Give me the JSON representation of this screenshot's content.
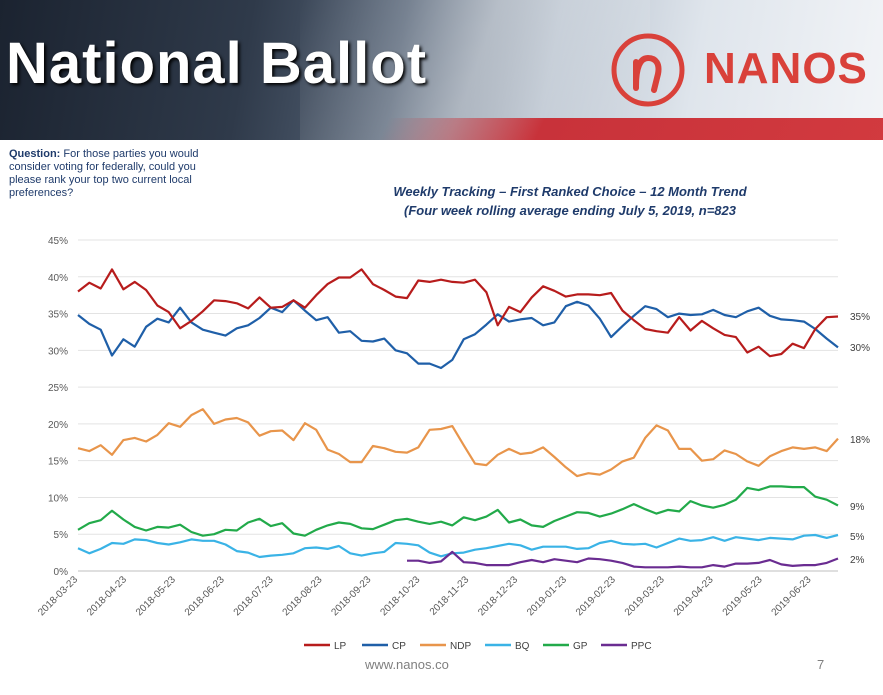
{
  "header": {
    "title": "National Ballot",
    "logo_text": "NANOS"
  },
  "question": {
    "label": "Question:",
    "text": " For those parties you would consider voting for federally, could you please rank your top two current local preferences?"
  },
  "footer": {
    "url": "www.nanos.co",
    "page": "7"
  },
  "colors": {
    "LP": "#b71c1c",
    "CP": "#1f5fa8",
    "NDP": "#e8954b",
    "BQ": "#3ab3e6",
    "GP": "#22aa4a",
    "PPC": "#6a2c91"
  },
  "chart_data": {
    "type": "line",
    "title": "Weekly Tracking – First Ranked Choice – 12 Month Trend",
    "subtitle": "(Four week rolling average ending July 5, 2019, n=823",
    "ylim": [
      0,
      45
    ],
    "y_ticks": [
      "0%",
      "5%",
      "10%",
      "15%",
      "20%",
      "25%",
      "30%",
      "35%",
      "40%",
      "45%"
    ],
    "x_ticks": [
      "2018-03-23",
      "2018-04-23",
      "2018-05-23",
      "2018-06-23",
      "2018-07-23",
      "2018-08-23",
      "2018-09-23",
      "2018-10-23",
      "2018-11-23",
      "2018-12-23",
      "2019-01-23",
      "2019-02-23",
      "2019-03-23",
      "2019-04-23",
      "2019-05-23",
      "2019-06-23"
    ],
    "end_labels": [
      "35%",
      "30%",
      "18%",
      "9%",
      "5%",
      "2%"
    ],
    "series": [
      {
        "name": "LP",
        "values": [
          38,
          39.2,
          38.4,
          41,
          38.3,
          39.3,
          38.2,
          36.1,
          35.2,
          33,
          34,
          35.3,
          36.8,
          36.7,
          36.4,
          35.7,
          37.2,
          35.8,
          35.9,
          36.8,
          35.8,
          37.5,
          39,
          39.9,
          39.9,
          41,
          39,
          38.2,
          37.3,
          37.1,
          39.5,
          39.3,
          39.6,
          39.3,
          39.2,
          39.6,
          37.9,
          33.4,
          35.9,
          35.2,
          37.2,
          38.7,
          38.1,
          37.3,
          37.6,
          37.6,
          37.5,
          37.8,
          35.4,
          34.1,
          32.9,
          32.6,
          32.4,
          34.5,
          32.7,
          34,
          33,
          32.1,
          31.8,
          29.7,
          30.5,
          29.2,
          29.5,
          30.9,
          30.3,
          32.9,
          34.5,
          34.6
        ]
      },
      {
        "name": "CP",
        "values": [
          34.8,
          33.6,
          32.8,
          29.3,
          31.5,
          30.5,
          33.2,
          34.3,
          33.8,
          35.8,
          33.8,
          32.8,
          32.4,
          32,
          33,
          33.4,
          34.4,
          35.8,
          35.2,
          36.8,
          35.4,
          34.1,
          34.5,
          32.4,
          32.6,
          31.3,
          31.2,
          31.6,
          30,
          29.6,
          28.2,
          28.2,
          27.6,
          28.7,
          31.5,
          32.2,
          33.5,
          34.9,
          33.9,
          34.2,
          34.4,
          33.4,
          33.8,
          36,
          36.6,
          36.1,
          34.3,
          31.8,
          33.3,
          34.7,
          36,
          35.6,
          34.5,
          35,
          34.8,
          34.9,
          35.5,
          34.8,
          34.5,
          35.3,
          35.8,
          34.7,
          34.2,
          34.1,
          33.9,
          32.9,
          31.6,
          30.4
        ]
      },
      {
        "name": "NDP",
        "values": [
          16.7,
          16.3,
          17.1,
          15.8,
          17.8,
          18.1,
          17.6,
          18.5,
          20.1,
          19.6,
          21.2,
          22,
          20,
          20.6,
          20.8,
          20.2,
          18.4,
          19,
          19.1,
          17.8,
          20.1,
          19.2,
          16.5,
          15.9,
          14.8,
          14.8,
          17,
          16.7,
          16.2,
          16.1,
          16.8,
          19.2,
          19.3,
          19.7,
          17.1,
          14.6,
          14.4,
          15.8,
          16.6,
          15.9,
          16.1,
          16.8,
          15.5,
          14.1,
          12.9,
          13.3,
          13.1,
          13.8,
          14.9,
          15.4,
          18.1,
          19.8,
          19.1,
          16.6,
          16.6,
          15,
          15.2,
          16.4,
          15.9,
          14.9,
          14.3,
          15.6,
          16.3,
          16.8,
          16.6,
          16.8,
          16.3,
          18
        ]
      },
      {
        "name": "GP",
        "values": [
          5.6,
          6.5,
          6.9,
          8.2,
          7,
          6,
          5.5,
          6,
          5.9,
          6.3,
          5.3,
          4.8,
          5,
          5.6,
          5.5,
          6.6,
          7.1,
          6.1,
          6.5,
          5.1,
          4.8,
          5.6,
          6.2,
          6.6,
          6.4,
          5.8,
          5.7,
          6.3,
          6.9,
          7.1,
          6.7,
          6.4,
          6.7,
          6.2,
          7.3,
          6.9,
          7.4,
          8.3,
          6.6,
          7,
          6.2,
          6,
          6.8,
          7.4,
          8,
          7.9,
          7.4,
          7.8,
          8.4,
          9.1,
          8.4,
          7.8,
          8.3,
          8.1,
          9.5,
          8.9,
          8.6,
          9,
          9.7,
          11.3,
          11,
          11.5,
          11.5,
          11.4,
          11.4,
          10.1,
          9.7,
          8.9
        ]
      },
      {
        "name": "BQ",
        "values": [
          3.1,
          2.4,
          3,
          3.8,
          3.7,
          4.3,
          4.2,
          3.8,
          3.6,
          3.9,
          4.3,
          4.1,
          4.1,
          3.6,
          2.7,
          2.5,
          1.9,
          2.1,
          2.2,
          2.4,
          3.1,
          3.2,
          3,
          3.4,
          2.4,
          2.1,
          2.4,
          2.6,
          3.8,
          3.7,
          3.5,
          2.5,
          2,
          2.4,
          2.5,
          2.9,
          3.1,
          3.4,
          3.7,
          3.5,
          2.9,
          3.3,
          3.3,
          3.3,
          3,
          3.1,
          3.8,
          4.1,
          3.7,
          3.6,
          3.7,
          3.2,
          3.8,
          4.4,
          4.1,
          4.2,
          4.6,
          4.1,
          4.6,
          4.4,
          4.2,
          4.5,
          4.4,
          4.3,
          4.8,
          4.9,
          4.5,
          4.9
        ]
      },
      {
        "name": "PPC",
        "values": [
          null,
          null,
          null,
          null,
          null,
          null,
          null,
          null,
          null,
          null,
          null,
          null,
          null,
          null,
          null,
          null,
          null,
          null,
          null,
          null,
          null,
          null,
          null,
          null,
          null,
          null,
          null,
          null,
          null,
          1.4,
          1.4,
          1.1,
          1.3,
          2.6,
          1.2,
          1.1,
          0.8,
          0.8,
          0.8,
          1.2,
          1.5,
          1.2,
          1.6,
          1.4,
          1.2,
          1.7,
          1.6,
          1.4,
          1.1,
          0.6,
          0.5,
          0.5,
          0.5,
          0.6,
          0.5,
          0.5,
          0.8,
          0.6,
          1,
          1,
          1.1,
          1.5,
          0.9,
          0.7,
          0.8,
          0.8,
          1.1,
          1.7
        ]
      }
    ]
  }
}
